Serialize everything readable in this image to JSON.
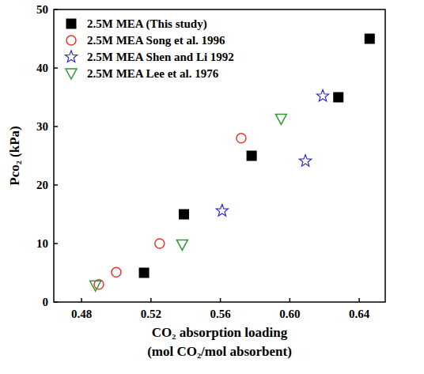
{
  "chart_data": {
    "type": "scatter",
    "xlabel": [
      "CO₂ absorption loading",
      "(mol CO₂/mol absorbent)"
    ],
    "ylabel": "Pco₂ (kPa)",
    "xlim": [
      0.464,
      0.655
    ],
    "xticks": [
      {
        "value": 0.48,
        "label": "0.48"
      },
      {
        "value": 0.52,
        "label": "0.52"
      },
      {
        "value": 0.56,
        "label": "0.56"
      },
      {
        "value": 0.6,
        "label": "0.60"
      },
      {
        "value": 0.64,
        "label": "0.64"
      }
    ],
    "ylim": [
      0,
      50
    ],
    "yticks": [
      0,
      10,
      20,
      30,
      40,
      50
    ],
    "grid": false,
    "legend": "upper left",
    "series": [
      {
        "name": "2.5M MEA (This study)",
        "color": "#000000",
        "marker": "square",
        "x": [
          0.516,
          0.539,
          0.578,
          0.628,
          0.646
        ],
        "values": [
          5,
          15,
          25,
          35,
          45
        ]
      },
      {
        "name": "2.5M MEA Song et al. 1996",
        "color": "#e8352b",
        "marker": "circle",
        "x": [
          0.49,
          0.5,
          0.525,
          0.572
        ],
        "values": [
          3,
          5.1,
          10,
          28
        ]
      },
      {
        "name": "2.5M MEA Shen and Li 1992",
        "color": "#2b2bd0",
        "marker": "star",
        "x": [
          0.561,
          0.609,
          0.619
        ],
        "values": [
          15.6,
          24.1,
          35.2
        ]
      },
      {
        "name": "2.5M MEA Lee et al. 1976",
        "color": "#2e9a2e",
        "marker": "triangle_down",
        "x": [
          0.488,
          0.538,
          0.595
        ],
        "values": [
          2.8,
          9.8,
          31.3
        ]
      }
    ]
  }
}
